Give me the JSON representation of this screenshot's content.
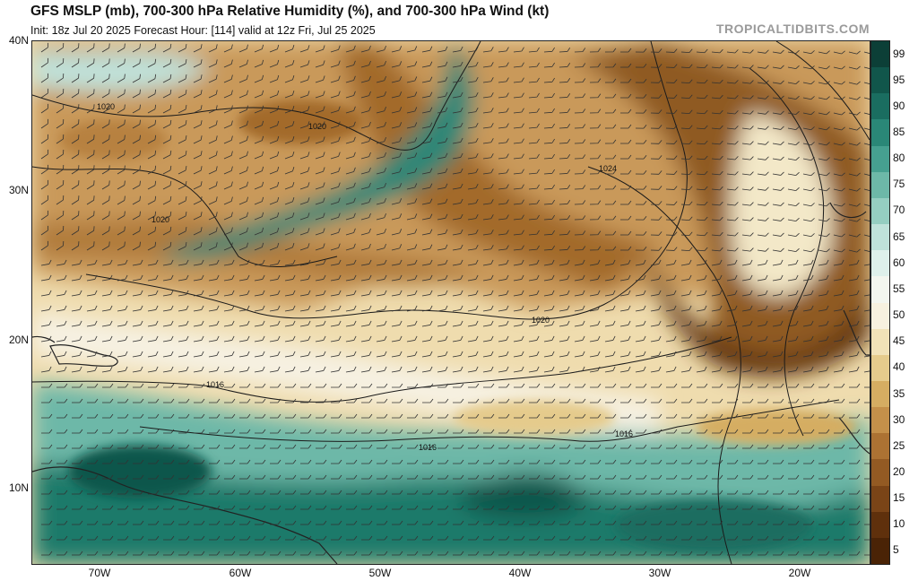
{
  "header": {
    "title": "GFS MSLP (mb), 700-300 hPa Relative Humidity (%), and 700-300 hPa Wind (kt)",
    "subtitle": "Init: 18z Jul 20 2025   Forecast Hour: [114]   valid at 12z Fri, Jul 25 2025",
    "watermark": "TROPICALTIDBITS.COM"
  },
  "axes": {
    "lat_labels": [
      "40N",
      "30N",
      "20N",
      "10N"
    ],
    "lon_labels": [
      "70W",
      "60W",
      "50W",
      "40W",
      "30W",
      "20W"
    ]
  },
  "isobars": {
    "labels": [
      "1020",
      "1020",
      "1020",
      "1024",
      "1020",
      "1016",
      "1016",
      "1016"
    ]
  },
  "colorbar": {
    "labels": [
      "99",
      "95",
      "90",
      "85",
      "80",
      "75",
      "70",
      "65",
      "60",
      "55",
      "50",
      "45",
      "40",
      "35",
      "30",
      "25",
      "20",
      "15",
      "10",
      "5"
    ],
    "colors": [
      "#0c3f37",
      "#11564b",
      "#1a6d60",
      "#2a8777",
      "#46a090",
      "#6db8a8",
      "#95cec1",
      "#bfe2da",
      "#def0eb",
      "#f3f6ef",
      "#f7f1df",
      "#f1e2b8",
      "#e5cb8c",
      "#d5ad62",
      "#c4904a",
      "#ac7233",
      "#935a23",
      "#7a4417",
      "#5f300c",
      "#4a2306"
    ]
  }
}
